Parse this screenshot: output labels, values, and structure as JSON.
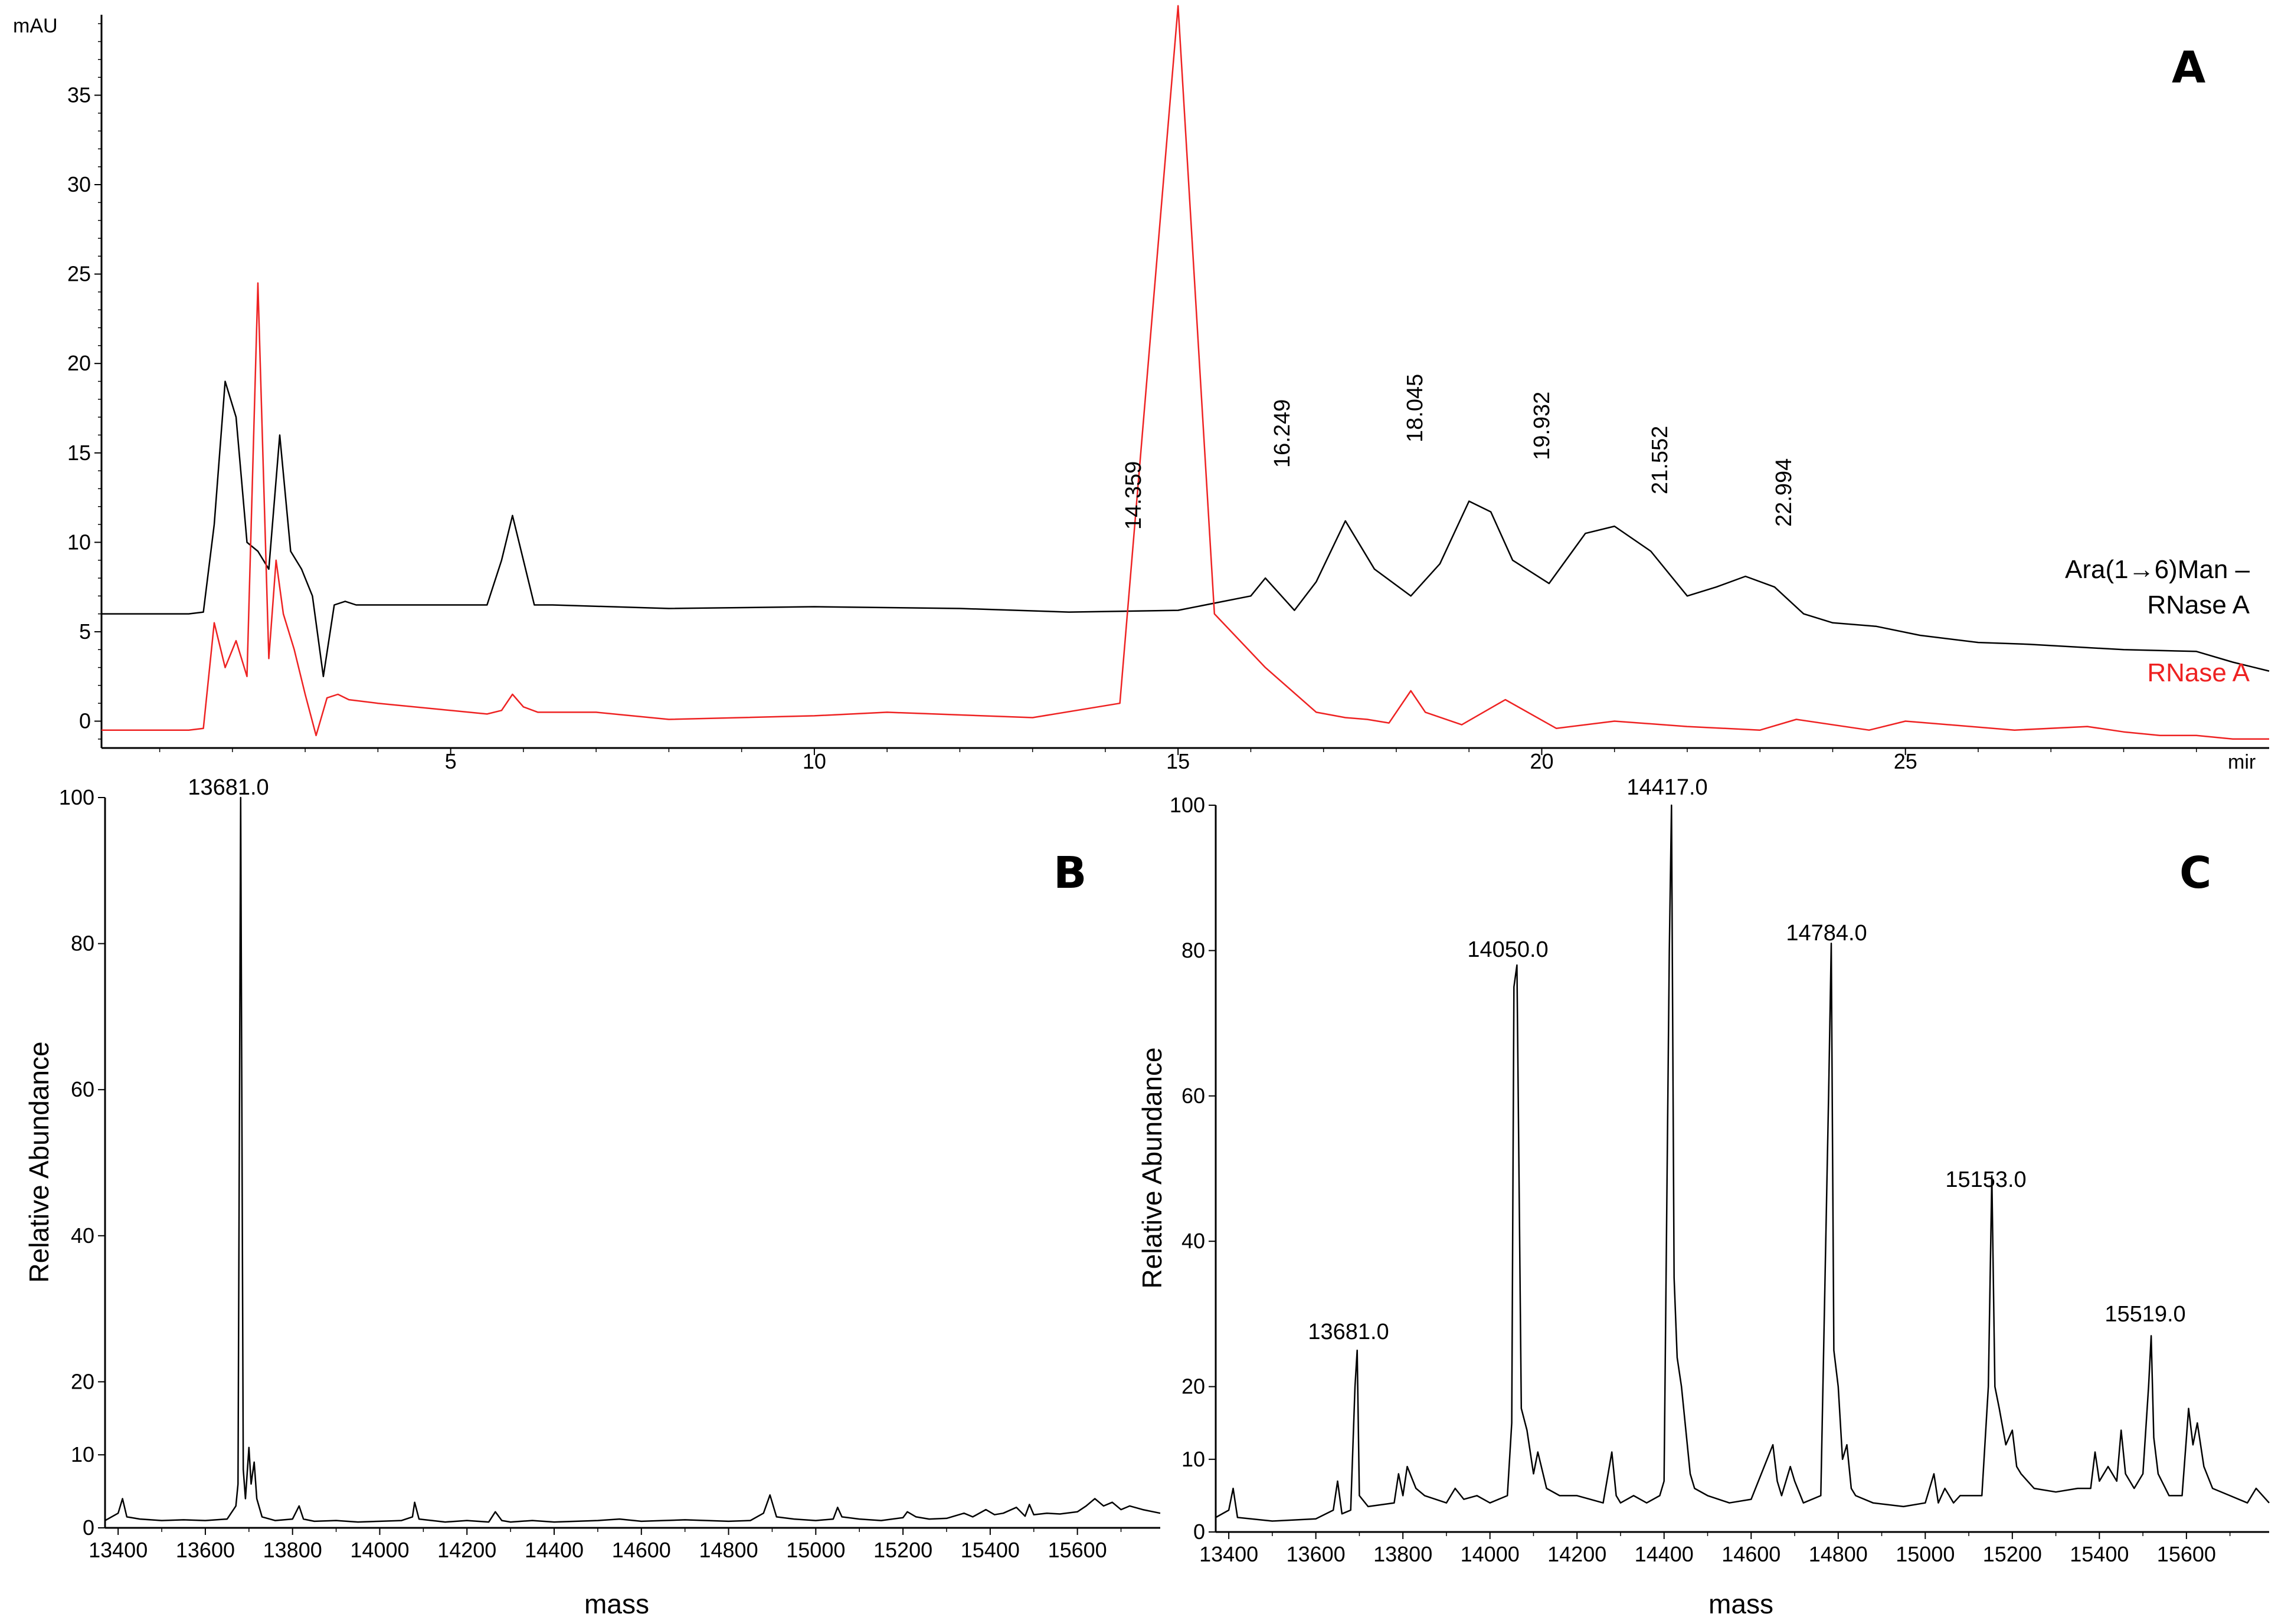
{
  "panels": {
    "A": {
      "letter": "A",
      "y_unit": "mAU",
      "x_unit": "mir",
      "x_ticks": [
        "5",
        "10",
        "15",
        "20",
        "25"
      ],
      "y_ticks": [
        "0",
        "5",
        "10",
        "15",
        "20",
        "25",
        "30",
        "35"
      ],
      "legend": {
        "black_line1": "Ara(1→6)Man –",
        "black_line2": "RNase A",
        "red": "RNase A"
      },
      "peak_labels": [
        "14.359",
        "16.249",
        "18.045",
        "19.932",
        "21.552",
        "22.994"
      ],
      "colors": {
        "black": "#000000",
        "red": "#ee2222"
      }
    },
    "B": {
      "letter": "B",
      "ylabel": "Relative Abundance",
      "xlabel": "mass",
      "x_ticks": [
        "13400",
        "13600",
        "13800",
        "14000",
        "14200",
        "14400",
        "14600",
        "14800",
        "15000",
        "15200",
        "15400",
        "15600"
      ],
      "y_ticks": [
        "0",
        "10",
        "20",
        "40",
        "60",
        "80",
        "100"
      ],
      "peak_labels": [
        "13681.0"
      ]
    },
    "C": {
      "letter": "C",
      "ylabel": "Relative Abundance",
      "xlabel": "mass",
      "x_ticks": [
        "13400",
        "13600",
        "13800",
        "14000",
        "14200",
        "14400",
        "14600",
        "14800",
        "15000",
        "15200",
        "15400",
        "15600"
      ],
      "y_ticks": [
        "0",
        "10",
        "20",
        "40",
        "60",
        "80",
        "100"
      ],
      "peak_labels": [
        "13681.0",
        "14050.0",
        "14417.0",
        "14784.0",
        "15153.0",
        "15519.0"
      ]
    }
  },
  "chart_data": [
    {
      "type": "line",
      "xlim": [
        0.2,
        30.0
      ],
      "ylim": [
        -1.5,
        39.5
      ],
      "grid": false,
      "series": [
        {
          "color": "#000000",
          "x": [
            0.2,
            1.4,
            1.6,
            1.75,
            1.9,
            2.05,
            2.2,
            2.35,
            2.5,
            2.65,
            2.8,
            2.95,
            3.1,
            3.25,
            3.4,
            3.55,
            3.7,
            4.0,
            5.5,
            5.7,
            5.85,
            6.0,
            6.15,
            6.4,
            8.0,
            10.0,
            12.0,
            13.5,
            15.0,
            16.0,
            16.2,
            16.6,
            16.9,
            17.3,
            17.7,
            18.2,
            18.6,
            19.0,
            19.3,
            19.6,
            20.1,
            20.6,
            21.0,
            21.5,
            22.0,
            22.4,
            22.8,
            23.2,
            23.6,
            24.0,
            24.6,
            25.2,
            26.0,
            26.7,
            28.0,
            29.0,
            29.5,
            30.0
          ],
          "y": [
            6.0,
            6.0,
            6.1,
            11.0,
            19.0,
            17.0,
            10.0,
            9.5,
            8.5,
            16.0,
            9.5,
            8.5,
            7.0,
            2.5,
            6.5,
            6.7,
            6.5,
            6.5,
            6.5,
            9.0,
            11.5,
            9.0,
            6.5,
            6.5,
            6.3,
            6.4,
            6.3,
            6.1,
            6.2,
            7.0,
            8.0,
            6.2,
            7.8,
            11.2,
            8.5,
            7.0,
            8.8,
            12.3,
            11.7,
            9.0,
            7.7,
            10.5,
            10.9,
            9.5,
            7.0,
            7.5,
            8.1,
            7.5,
            6.0,
            5.5,
            5.3,
            4.8,
            4.4,
            4.3,
            4.0,
            3.9,
            3.3,
            2.8
          ]
        },
        {
          "color": "#ee2222",
          "x": [
            0.2,
            1.4,
            1.6,
            1.75,
            1.9,
            2.05,
            2.2,
            2.35,
            2.5,
            2.6,
            2.7,
            2.85,
            3.0,
            3.15,
            3.3,
            3.45,
            3.6,
            4.0,
            5.5,
            5.7,
            5.85,
            6.0,
            6.2,
            7.0,
            8.0,
            10.0,
            11.0,
            13.0,
            14.2,
            15.0,
            15.5,
            16.2,
            16.9,
            17.3,
            17.6,
            17.9,
            18.2,
            18.4,
            18.9,
            19.5,
            20.2,
            21.0,
            22.0,
            23.0,
            23.5,
            24.5,
            25.0,
            26.5,
            27.5,
            28.0,
            28.5,
            29.0,
            29.5,
            30.0
          ],
          "y": [
            -0.5,
            -0.5,
            -0.4,
            5.5,
            3.0,
            4.5,
            2.5,
            24.5,
            3.5,
            9.0,
            6.0,
            4.0,
            1.5,
            -0.8,
            1.3,
            1.5,
            1.2,
            1.0,
            0.4,
            0.6,
            1.5,
            0.8,
            0.5,
            0.5,
            0.1,
            0.3,
            0.5,
            0.2,
            1.0,
            40.0,
            6.0,
            3.0,
            0.5,
            0.2,
            0.1,
            -0.1,
            1.7,
            0.5,
            -0.2,
            1.2,
            -0.4,
            0.0,
            -0.3,
            -0.5,
            0.1,
            -0.5,
            0.0,
            -0.5,
            -0.3,
            -0.6,
            -0.8,
            -0.8,
            -1.0,
            -1.0
          ]
        }
      ]
    },
    {
      "type": "line",
      "xlim": [
        13370,
        15790
      ],
      "ylim": [
        0,
        100
      ],
      "grid": false,
      "series": [
        {
          "color": "#000000",
          "x": [
            13370,
            13400,
            13410,
            13420,
            13450,
            13500,
            13550,
            13600,
            13650,
            13670,
            13675,
            13681,
            13687,
            13692,
            13700,
            13705,
            13712,
            13718,
            13730,
            13760,
            13800,
            13815,
            13825,
            13850,
            13900,
            13950,
            14000,
            14050,
            14075,
            14080,
            14090,
            14150,
            14200,
            14250,
            14265,
            14270,
            14280,
            14300,
            14350,
            14400,
            14450,
            14500,
            14550,
            14600,
            14650,
            14700,
            14750,
            14800,
            14850,
            14880,
            14895,
            14910,
            14950,
            15000,
            15040,
            15050,
            15060,
            15100,
            15150,
            15200,
            15210,
            15230,
            15260,
            15300,
            15340,
            15360,
            15390,
            15410,
            15430,
            15460,
            15480,
            15490,
            15500,
            15530,
            15560,
            15600,
            15620,
            15640,
            15660,
            15680,
            15700,
            15720,
            15750,
            15790
          ],
          "y": [
            1.0,
            2.0,
            4.0,
            1.5,
            1.2,
            1.0,
            1.1,
            1.0,
            1.2,
            3.0,
            6.0,
            100.0,
            8.0,
            4.0,
            11.0,
            6.0,
            9.0,
            4.0,
            1.5,
            1.0,
            1.2,
            3.0,
            1.2,
            0.9,
            1.0,
            0.8,
            0.9,
            1.0,
            1.5,
            3.5,
            1.2,
            0.8,
            1.0,
            0.8,
            2.2,
            1.8,
            1.0,
            0.8,
            1.0,
            0.8,
            0.9,
            1.0,
            1.2,
            0.9,
            1.0,
            1.1,
            1.0,
            0.9,
            1.0,
            2.0,
            4.5,
            1.5,
            1.2,
            1.0,
            1.2,
            2.8,
            1.5,
            1.2,
            1.0,
            1.4,
            2.2,
            1.5,
            1.2,
            1.3,
            2.0,
            1.5,
            2.5,
            1.8,
            2.0,
            2.8,
            1.6,
            3.2,
            1.8,
            2.0,
            1.9,
            2.2,
            3.0,
            4.0,
            3.0,
            3.5,
            2.5,
            3.0,
            2.5,
            2.0
          ]
        }
      ]
    },
    {
      "type": "line",
      "xlim": [
        13370,
        15790
      ],
      "ylim": [
        0,
        100
      ],
      "grid": false,
      "series": [
        {
          "color": "#000000",
          "x": [
            13370,
            13400,
            13410,
            13420,
            13500,
            13600,
            13640,
            13650,
            13660,
            13680,
            13690,
            13695,
            13700,
            13720,
            13780,
            13790,
            13800,
            13810,
            13830,
            13850,
            13900,
            13920,
            13940,
            13970,
            14000,
            14040,
            14050,
            14055,
            14062,
            14072,
            14085,
            14100,
            14110,
            14130,
            14160,
            14200,
            14260,
            14280,
            14290,
            14300,
            14330,
            14360,
            14390,
            14400,
            14412,
            14417,
            14423,
            14430,
            14440,
            14450,
            14460,
            14470,
            14500,
            14550,
            14600,
            14650,
            14660,
            14670,
            14690,
            14700,
            14720,
            14760,
            14778,
            14784,
            14790,
            14800,
            14810,
            14820,
            14830,
            14840,
            14880,
            14950,
            15000,
            15020,
            15030,
            15045,
            15055,
            15065,
            15080,
            15100,
            15130,
            15145,
            15153,
            15160,
            15170,
            15185,
            15200,
            15210,
            15220,
            15250,
            15300,
            15350,
            15380,
            15390,
            15400,
            15420,
            15440,
            15450,
            15460,
            15480,
            15500,
            15513,
            15519,
            15525,
            15535,
            15560,
            15590,
            15605,
            15615,
            15625,
            15640,
            15660,
            15700,
            15740,
            15760,
            15790
          ],
          "y": [
            2.0,
            3.0,
            6.0,
            2.0,
            1.5,
            1.8,
            3.0,
            7.0,
            2.5,
            3.0,
            20.0,
            25.0,
            5.0,
            3.5,
            4.0,
            8.0,
            5.0,
            9.0,
            6.0,
            5.0,
            4.0,
            6.0,
            4.5,
            5.0,
            4.0,
            5.0,
            15.0,
            75.0,
            78.0,
            17.0,
            14.0,
            8.0,
            11.0,
            6.0,
            5.0,
            5.0,
            4.0,
            11.0,
            5.0,
            4.0,
            5.0,
            4.0,
            5.0,
            7.0,
            80.0,
            100.0,
            35.0,
            24.0,
            20.0,
            14.0,
            8.0,
            6.0,
            5.0,
            4.0,
            4.5,
            12.0,
            7.0,
            5.0,
            9.0,
            7.0,
            4.0,
            5.0,
            60.0,
            81.0,
            25.0,
            20.0,
            10.0,
            12.0,
            6.0,
            5.0,
            4.0,
            3.5,
            4.0,
            8.0,
            4.0,
            6.0,
            5.0,
            4.0,
            5.0,
            5.0,
            5.0,
            20.0,
            49.0,
            20.0,
            17.0,
            12.0,
            14.0,
            9.0,
            8.0,
            6.0,
            5.5,
            6.0,
            6.0,
            11.0,
            7.0,
            9.0,
            7.0,
            14.0,
            8.0,
            6.0,
            8.0,
            20.0,
            27.0,
            13.0,
            8.0,
            5.0,
            5.0,
            17.0,
            12.0,
            15.0,
            9.0,
            6.0,
            5.0,
            4.0,
            6.0,
            4.0
          ]
        }
      ]
    }
  ]
}
